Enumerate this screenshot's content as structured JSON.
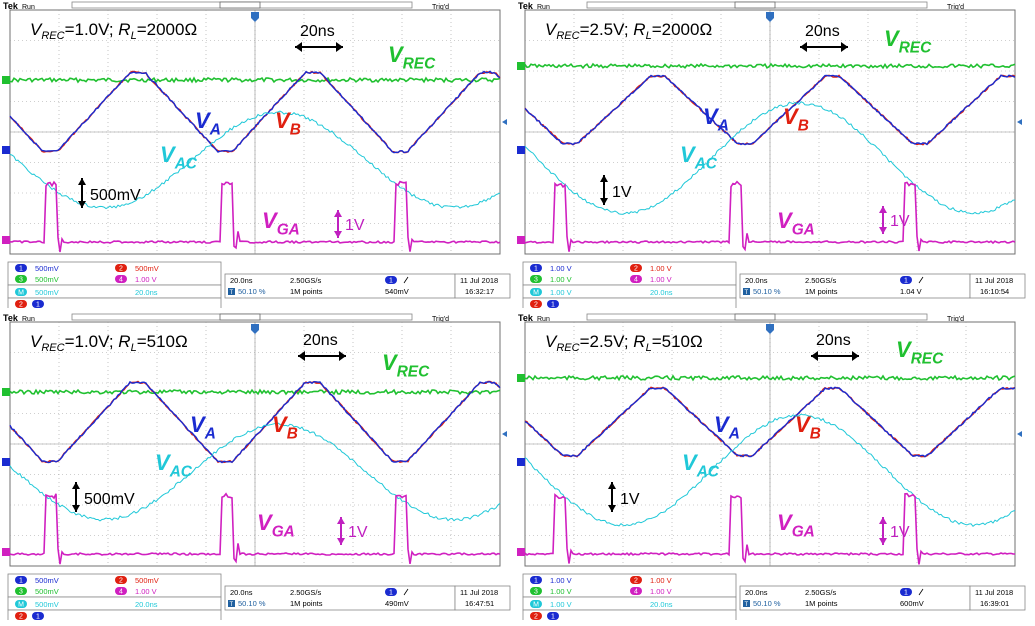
{
  "scope": {
    "brand": "Tek",
    "run": "Run",
    "trig": "Trig'd"
  },
  "panels": [
    {
      "id": "p1",
      "title": {
        "a": "V",
        "a_sub": "REC",
        "b": "=1.0V; ",
        "c": "R",
        "c_sub": "L",
        "d": "=2000Ω"
      },
      "timescale_label": "20ns",
      "volt_scale_label": "500mV",
      "gate_scale_label": "1V",
      "ch_scales": {
        "ch1": "500mV",
        "ch2": "500mV",
        "ch3": "500mV",
        "ch4": "1.00 V",
        "math": "500mV",
        "math_t": "20.0ns"
      },
      "timebase": {
        "div": "20.0ns",
        "rate": "2.50GS/s",
        "pos": "50.10 %",
        "pts": "1M points",
        "trig": "540mV",
        "date": "11 Jul  2018",
        "time": "16:32:17"
      }
    },
    {
      "id": "p2",
      "title": {
        "a": "V",
        "a_sub": "REC",
        "b": "=2.5V; ",
        "c": "R",
        "c_sub": "L",
        "d": "=2000Ω"
      },
      "timescale_label": "20ns",
      "volt_scale_label": "1V",
      "gate_scale_label": "1V",
      "ch_scales": {
        "ch1": "1.00 V",
        "ch2": "1.00 V",
        "ch3": "1.00 V",
        "ch4": "1.00 V",
        "math": "1.00 V",
        "math_t": "20.0ns"
      },
      "timebase": {
        "div": "20.0ns",
        "rate": "2.50GS/s",
        "pos": "50.10 %",
        "pts": "1M points",
        "trig": "1.04 V",
        "date": "11 Jul  2018",
        "time": "16:10:54"
      }
    },
    {
      "id": "p3",
      "title": {
        "a": "V",
        "a_sub": "REC",
        "b": "=1.0V; ",
        "c": "R",
        "c_sub": "L",
        "d": "=510Ω"
      },
      "timescale_label": "20ns",
      "volt_scale_label": "500mV",
      "gate_scale_label": "1V",
      "ch_scales": {
        "ch1": "500mV",
        "ch2": "500mV",
        "ch3": "500mV",
        "ch4": "1.00 V",
        "math": "500mV",
        "math_t": "20.0ns"
      },
      "timebase": {
        "div": "20.0ns",
        "rate": "2.50GS/s",
        "pos": "50.10 %",
        "pts": "1M points",
        "trig": "490mV",
        "date": "11 Jul  2018",
        "time": "16:47:51"
      }
    },
    {
      "id": "p4",
      "title": {
        "a": "V",
        "a_sub": "REC",
        "b": "=2.5V; ",
        "c": "R",
        "c_sub": "L",
        "d": "=510Ω"
      },
      "timescale_label": "20ns",
      "volt_scale_label": "1V",
      "gate_scale_label": "1V",
      "ch_scales": {
        "ch1": "1.00 V",
        "ch2": "1.00 V",
        "ch3": "1.00 V",
        "ch4": "1.00 V",
        "math": "1.00 V",
        "math_t": "20.0ns"
      },
      "timebase": {
        "div": "20.0ns",
        "rate": "2.50GS/s",
        "pos": "50.10 %",
        "pts": "1M points",
        "trig": "600mV",
        "date": "11 Jul  2018",
        "time": "16:39:01"
      }
    }
  ],
  "labels": {
    "va": {
      "t": "V",
      "s": "A"
    },
    "vb": {
      "t": "V",
      "s": "B"
    },
    "vac": {
      "t": "V",
      "s": "AC"
    },
    "vrec": {
      "t": "V",
      "s": "REC"
    },
    "vga": {
      "t": "V",
      "s": "GA"
    }
  },
  "colors": {
    "va": "#1a2bd0",
    "vb": "#e02010",
    "vac": "#20c8d8",
    "vrec": "#20c030",
    "vga": "#d020c0",
    "grid": "#a0a0a0",
    "scopebar": "#2060a0"
  },
  "chart_data": [
    {
      "type": "line",
      "title": "VREC=1.0V; RL=2000Ω",
      "series": [
        {
          "name": "VA"
        },
        {
          "name": "VB"
        },
        {
          "name": "VAC"
        },
        {
          "name": "VREC"
        },
        {
          "name": "VGA"
        }
      ]
    },
    {
      "type": "line",
      "title": "VREC=2.5V; RL=2000Ω",
      "series": [
        {
          "name": "VA"
        },
        {
          "name": "VB"
        },
        {
          "name": "VAC"
        },
        {
          "name": "VREC"
        },
        {
          "name": "VGA"
        }
      ]
    },
    {
      "type": "line",
      "title": "VREC=1.0V; RL=510Ω",
      "series": [
        {
          "name": "VA"
        },
        {
          "name": "VB"
        },
        {
          "name": "VAC"
        },
        {
          "name": "VREC"
        },
        {
          "name": "VGA"
        }
      ]
    },
    {
      "type": "line",
      "title": "VREC=2.5V; RL=510Ω",
      "series": [
        {
          "name": "VA"
        },
        {
          "name": "VB"
        },
        {
          "name": "VAC"
        },
        {
          "name": "VREC"
        },
        {
          "name": "VGA"
        }
      ]
    }
  ]
}
